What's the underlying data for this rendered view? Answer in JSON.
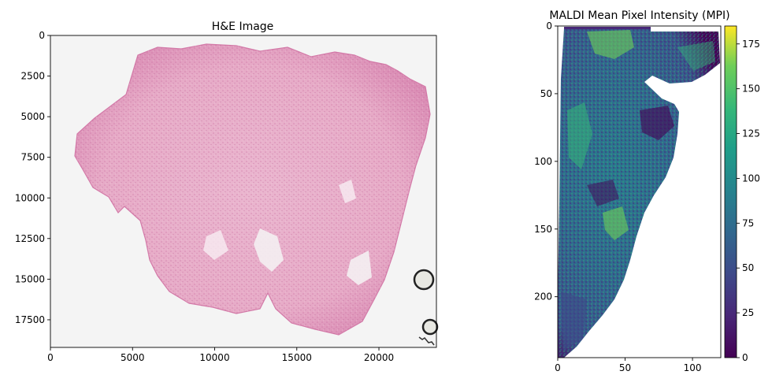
{
  "chart_data": [
    {
      "type": "image",
      "title": "H&E Image",
      "xlim": [
        0,
        23500
      ],
      "ylim": [
        19200,
        0
      ],
      "xticks": [
        0,
        5000,
        10000,
        15000,
        20000
      ],
      "yticks": [
        0,
        2500,
        5000,
        7500,
        10000,
        12500,
        15000,
        17500
      ],
      "grid": false
    },
    {
      "type": "heatmap",
      "title": "MALDI Mean Pixel Intensity (MPI)",
      "xlim": [
        0,
        121
      ],
      "ylim": [
        245,
        0
      ],
      "xticks": [
        0,
        50,
        100
      ],
      "yticks": [
        0,
        50,
        100,
        150,
        200
      ],
      "colormap": "viridis",
      "colorbar": {
        "min": 0,
        "max": 185,
        "ticks": [
          0,
          25,
          50,
          75,
          100,
          125,
          150,
          175
        ]
      },
      "grid": false
    }
  ]
}
